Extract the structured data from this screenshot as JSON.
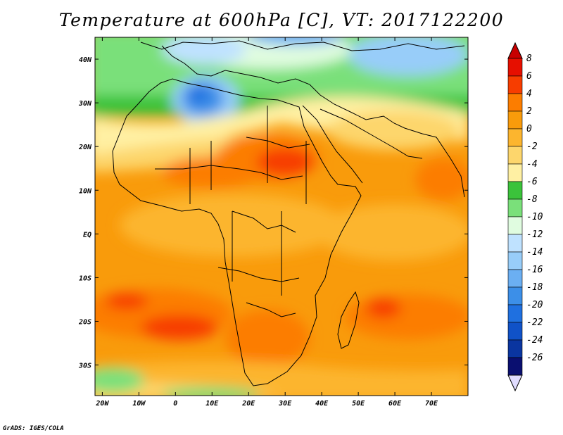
{
  "title": "Temperature at 600hPa [C], VT: 2017122200",
  "credit": "GrADS: IGES/COLA",
  "map": {
    "lon_range": [
      -22,
      80
    ],
    "lat_range": [
      -37,
      45
    ],
    "x_ticks": [
      {
        "value": -20,
        "label": "20W"
      },
      {
        "value": -10,
        "label": "10W"
      },
      {
        "value": 0,
        "label": "0"
      },
      {
        "value": 10,
        "label": "10E"
      },
      {
        "value": 20,
        "label": "20E"
      },
      {
        "value": 30,
        "label": "30E"
      },
      {
        "value": 40,
        "label": "40E"
      },
      {
        "value": 50,
        "label": "50E"
      },
      {
        "value": 60,
        "label": "60E"
      },
      {
        "value": 70,
        "label": "70E"
      }
    ],
    "y_ticks": [
      {
        "value": 40,
        "label": "40N"
      },
      {
        "value": 30,
        "label": "30N"
      },
      {
        "value": 20,
        "label": "20N"
      },
      {
        "value": 10,
        "label": "10N"
      },
      {
        "value": 0,
        "label": "EQ"
      },
      {
        "value": -10,
        "label": "10S"
      },
      {
        "value": -20,
        "label": "20S"
      },
      {
        "value": -30,
        "label": "30S"
      }
    ]
  },
  "colorbar": {
    "levels": [
      {
        "label": "8",
        "color": "#e60f00"
      },
      {
        "label": "6",
        "color": "#f73d00"
      },
      {
        "label": "4",
        "color": "#fc7d00"
      },
      {
        "label": "2",
        "color": "#f99b0b"
      },
      {
        "label": "0",
        "color": "#fcb52e"
      },
      {
        "label": "-2",
        "color": "#fdd66c"
      },
      {
        "label": "-4",
        "color": "#fff0a3"
      },
      {
        "label": "-6",
        "color": "#3bc33b"
      },
      {
        "label": "-8",
        "color": "#7ae07a"
      },
      {
        "label": "-10",
        "color": "#e0fce0"
      },
      {
        "label": "-12",
        "color": "#bfe2ff"
      },
      {
        "label": "-14",
        "color": "#98cdf9"
      },
      {
        "label": "-16",
        "color": "#6baff2"
      },
      {
        "label": "-18",
        "color": "#3c8fe8"
      },
      {
        "label": "-20",
        "color": "#1f70e0"
      },
      {
        "label": "-22",
        "color": "#1052c8"
      },
      {
        "label": "-24",
        "color": "#0a35a0"
      },
      {
        "label": "-26",
        "color": "#0a0f70"
      }
    ],
    "top_color": "#c80000",
    "bottom_color": "#e0dcff"
  }
}
